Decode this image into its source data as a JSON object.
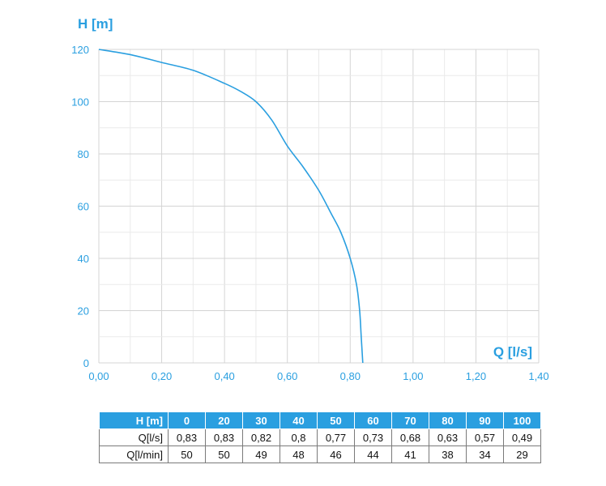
{
  "chart_data": {
    "type": "line",
    "ylabel": "H [m]",
    "xlabel": "Q [l/s]",
    "xlim": [
      0,
      1.4
    ],
    "ylim": [
      0,
      120
    ],
    "x_ticks": [
      "0,00",
      "0,20",
      "0,40",
      "0,60",
      "0,80",
      "1,00",
      "1,20",
      "1,40"
    ],
    "y_ticks": [
      "0",
      "20",
      "40",
      "60",
      "80",
      "100",
      "120"
    ],
    "grid": true,
    "line_color": "#2a9fe0",
    "series": [
      {
        "x": [
          0.0,
          0.1,
          0.2,
          0.3,
          0.4,
          0.45,
          0.5,
          0.55,
          0.6,
          0.65,
          0.7,
          0.74,
          0.77,
          0.8,
          0.82,
          0.83,
          0.835,
          0.84
        ],
        "y": [
          120,
          118,
          115,
          112,
          107,
          104,
          100,
          93,
          83,
          75,
          66,
          57,
          50,
          40,
          30,
          20,
          10,
          0
        ]
      }
    ]
  },
  "table": {
    "rows": [
      {
        "label": "H [m]",
        "values": [
          "0",
          "20",
          "30",
          "40",
          "50",
          "60",
          "70",
          "80",
          "90",
          "100"
        ]
      },
      {
        "label": "Q[l/s]",
        "values": [
          "0,83",
          "0,83",
          "0,82",
          "0,8",
          "0,77",
          "0,73",
          "0,68",
          "0,63",
          "0,57",
          "0,49"
        ]
      },
      {
        "label": "Q[l/min]",
        "values": [
          "50",
          "50",
          "49",
          "48",
          "46",
          "44",
          "41",
          "38",
          "34",
          "29"
        ]
      }
    ]
  }
}
